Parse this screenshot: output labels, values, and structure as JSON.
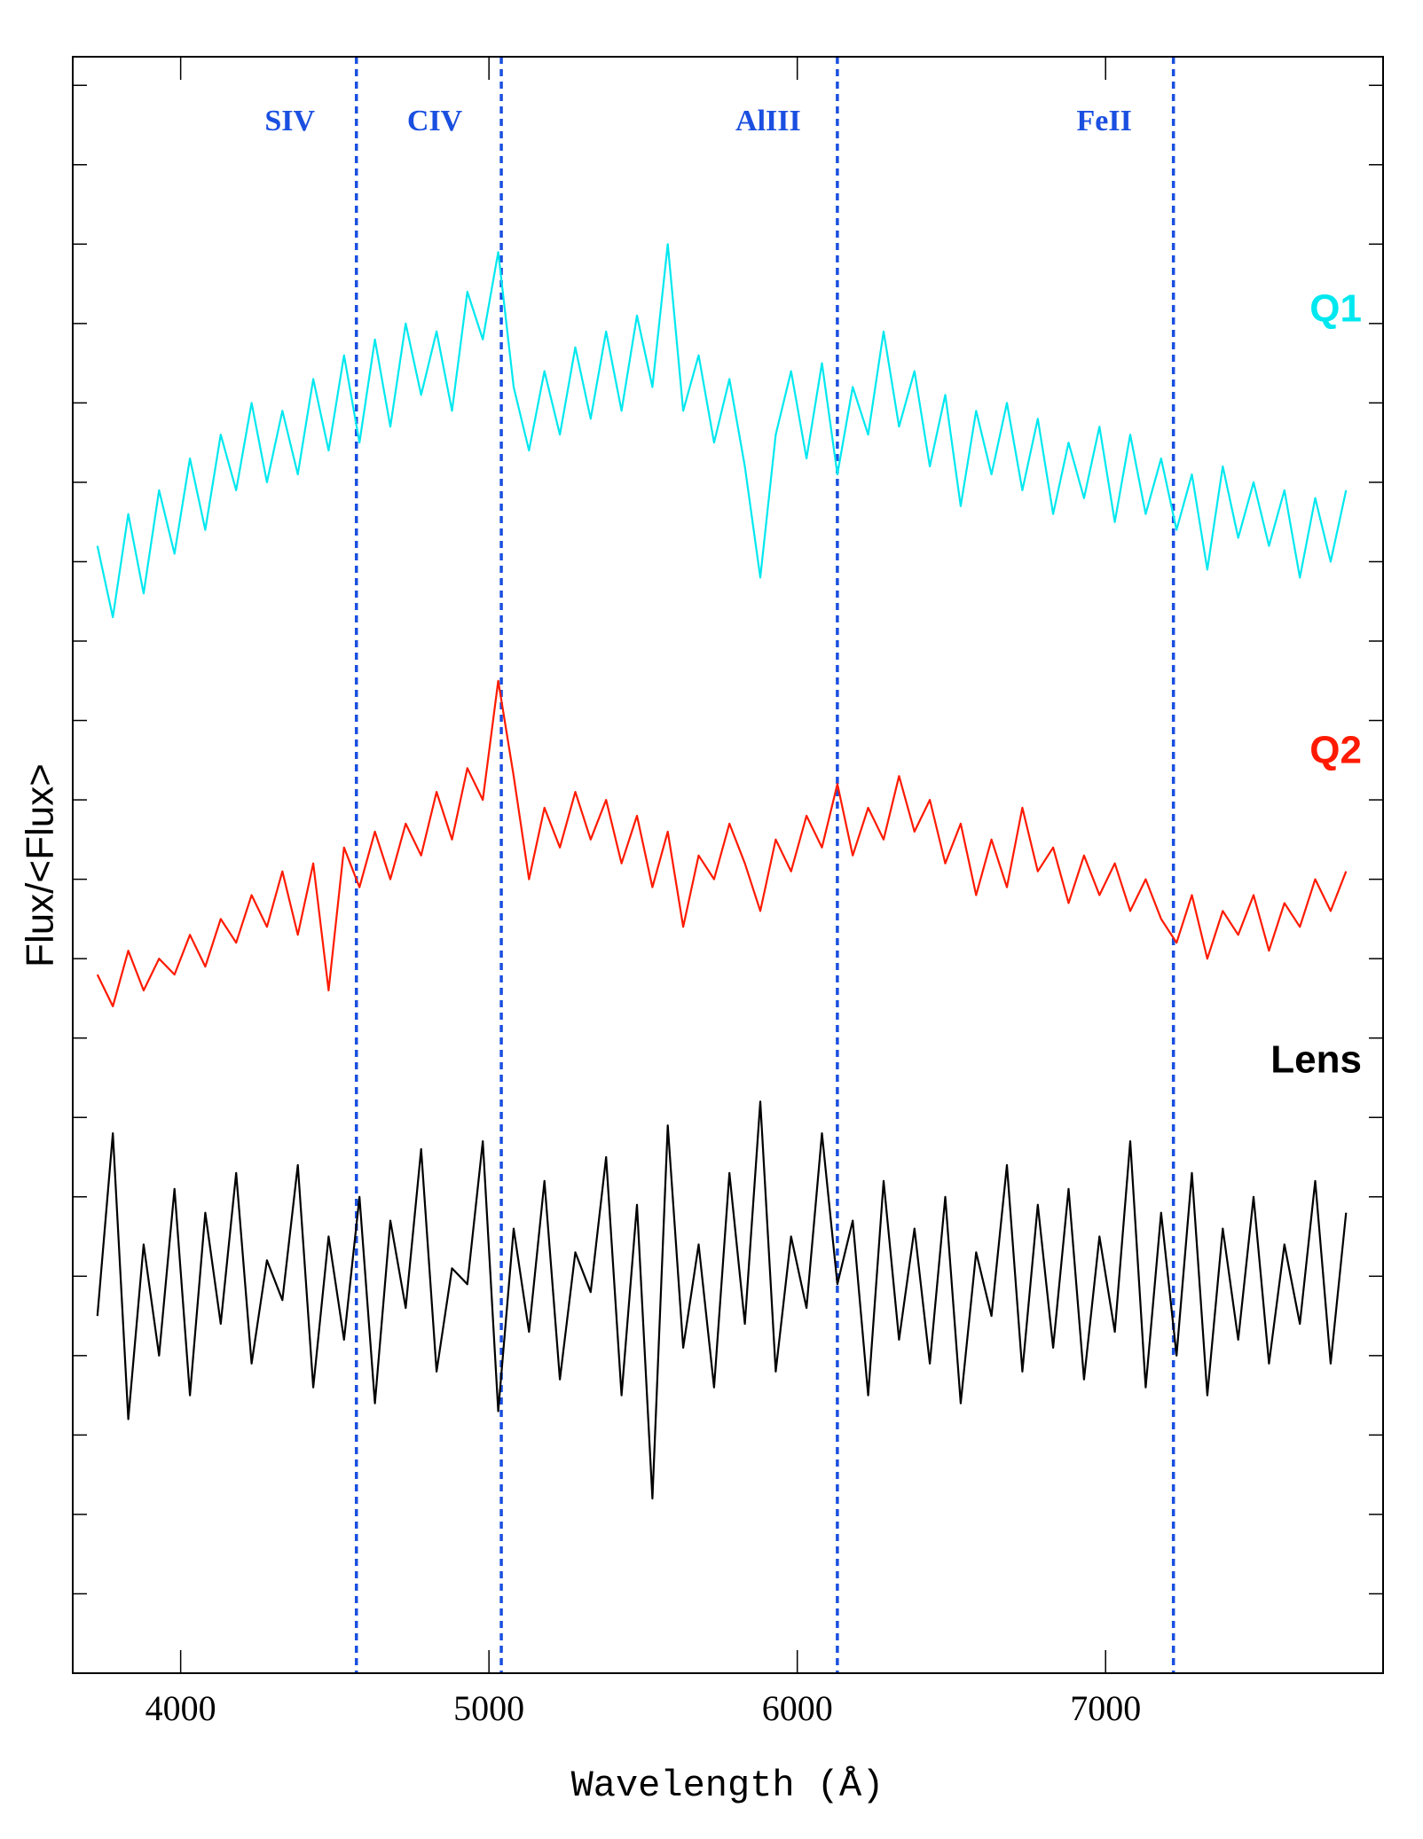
{
  "chart_data": {
    "type": "line",
    "x_label": "Wavelength (Å)",
    "y_label": "Flux/<Flux>",
    "x": [
      3730,
      3780,
      3830,
      3880,
      3930,
      3980,
      4030,
      4080,
      4130,
      4180,
      4230,
      4280,
      4330,
      4380,
      4430,
      4480,
      4530,
      4580,
      4630,
      4680,
      4730,
      4780,
      4830,
      4880,
      4930,
      4980,
      5030,
      5080,
      5130,
      5180,
      5230,
      5280,
      5330,
      5380,
      5430,
      5480,
      5530,
      5580,
      5630,
      5680,
      5730,
      5780,
      5830,
      5880,
      5930,
      5980,
      6030,
      6080,
      6130,
      6180,
      6230,
      6280,
      6330,
      6380,
      6430,
      6480,
      6530,
      6580,
      6630,
      6680,
      6730,
      6780,
      6830,
      6880,
      6930,
      6980,
      7030,
      7080,
      7130,
      7180,
      7230,
      7280,
      7330,
      7380,
      7430,
      7480,
      7530,
      7580,
      7630,
      7680,
      7730,
      7780
    ],
    "series": [
      {
        "name": "Q1",
        "color": "#00e8ef",
        "values": [
          14.2,
          13.3,
          14.6,
          13.6,
          14.9,
          14.1,
          15.3,
          14.4,
          15.6,
          14.9,
          16.0,
          15.0,
          15.9,
          15.1,
          16.3,
          15.4,
          16.6,
          15.5,
          16.8,
          15.7,
          17.0,
          16.1,
          16.9,
          15.9,
          17.4,
          16.8,
          17.9,
          16.2,
          15.4,
          16.4,
          15.6,
          16.7,
          15.8,
          16.9,
          15.9,
          17.1,
          16.2,
          18.0,
          15.9,
          16.6,
          15.5,
          16.3,
          15.2,
          13.8,
          15.6,
          16.4,
          15.3,
          16.5,
          15.1,
          16.2,
          15.6,
          16.9,
          15.7,
          16.4,
          15.2,
          16.1,
          14.7,
          15.9,
          15.1,
          16.0,
          14.9,
          15.8,
          14.6,
          15.5,
          14.8,
          15.7,
          14.5,
          15.6,
          14.6,
          15.3,
          14.4,
          15.1,
          13.9,
          15.2,
          14.3,
          15.0,
          14.2,
          14.9,
          13.8,
          14.8,
          14.0,
          14.9
        ]
      },
      {
        "name": "Q2",
        "color": "#ff1a00",
        "values": [
          8.8,
          8.4,
          9.1,
          8.6,
          9.0,
          8.8,
          9.3,
          8.9,
          9.5,
          9.2,
          9.8,
          9.4,
          10.1,
          9.3,
          10.2,
          8.6,
          10.4,
          9.9,
          10.6,
          10.0,
          10.7,
          10.3,
          11.1,
          10.5,
          11.4,
          11.0,
          12.5,
          11.3,
          10.0,
          10.9,
          10.4,
          11.1,
          10.5,
          11.0,
          10.2,
          10.8,
          9.9,
          10.6,
          9.4,
          10.3,
          10.0,
          10.7,
          10.2,
          9.6,
          10.5,
          10.1,
          10.8,
          10.4,
          11.2,
          10.3,
          10.9,
          10.5,
          11.3,
          10.6,
          11.0,
          10.2,
          10.7,
          9.8,
          10.5,
          9.9,
          10.9,
          10.1,
          10.4,
          9.7,
          10.3,
          9.8,
          10.2,
          9.6,
          10.0,
          9.5,
          9.2,
          9.8,
          9.0,
          9.6,
          9.3,
          9.8,
          9.1,
          9.7,
          9.4,
          10.0,
          9.6,
          10.1
        ]
      },
      {
        "name": "Lens",
        "color": "#000000",
        "values": [
          4.5,
          6.8,
          3.2,
          5.4,
          4.0,
          6.1,
          3.5,
          5.8,
          4.4,
          6.3,
          3.9,
          5.2,
          4.7,
          6.4,
          3.6,
          5.5,
          4.2,
          6.0,
          3.4,
          5.7,
          4.6,
          6.6,
          3.8,
          5.1,
          4.9,
          6.7,
          3.3,
          5.6,
          4.3,
          6.2,
          3.7,
          5.3,
          4.8,
          6.5,
          3.5,
          5.9,
          2.2,
          6.9,
          4.1,
          5.4,
          3.6,
          6.3,
          4.4,
          7.2,
          3.8,
          5.5,
          4.6,
          6.8,
          4.9,
          5.7,
          3.5,
          6.2,
          4.2,
          5.6,
          3.9,
          6.0,
          3.4,
          5.3,
          4.5,
          6.4,
          3.8,
          5.9,
          4.1,
          6.1,
          3.7,
          5.5,
          4.3,
          6.7,
          3.6,
          5.8,
          4.0,
          6.3,
          3.5,
          5.6,
          4.2,
          6.0,
          3.9,
          5.4,
          4.4,
          6.2,
          3.9,
          5.8
        ]
      }
    ],
    "annotations": [
      {
        "text": "SIV",
        "x": 4570,
        "color": "#1a4fe0"
      },
      {
        "text": "CIV",
        "x": 5040,
        "color": "#1a4fe0"
      },
      {
        "text": "AlIII",
        "x": 6130,
        "color": "#1a4fe0"
      },
      {
        "text": "FeII",
        "x": 7220,
        "color": "#1a4fe0"
      }
    ],
    "xlim": [
      3650,
      7900
    ],
    "xticks": [
      4000,
      5000,
      6000,
      7000
    ],
    "ylim": [
      0,
      20.36
    ],
    "yticks": [
      1,
      2,
      3,
      4,
      5,
      6,
      7,
      8,
      9,
      10,
      11,
      12,
      13,
      14,
      15,
      16,
      17,
      18,
      19,
      20
    ]
  }
}
